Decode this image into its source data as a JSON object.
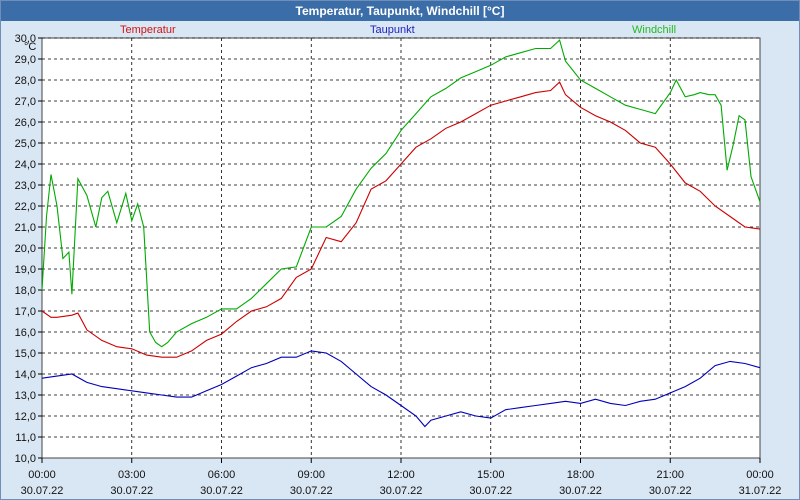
{
  "window": {
    "title": "Temperatur, Taupunkt, Windchill [°C]"
  },
  "chart_data": {
    "type": "line",
    "title": "Temperatur, Taupunkt, Windchill [°C]",
    "ylabel": "°C",
    "ylim": [
      10.0,
      30.0
    ],
    "ytick_step": 1,
    "ytick_labels": [
      "10,0",
      "11,0",
      "12,0",
      "13,0",
      "14,0",
      "15,0",
      "16,0",
      "17,0",
      "18,0",
      "19,0",
      "20,0",
      "21,0",
      "22,0",
      "23,0",
      "24,0",
      "25,0",
      "26,0",
      "27,0",
      "28,0",
      "29,0",
      "30,0"
    ],
    "xlim": [
      0,
      24
    ],
    "xticks": [
      {
        "time": "00:00",
        "date": "30.07.22"
      },
      {
        "time": "03:00",
        "date": "30.07.22"
      },
      {
        "time": "06:00",
        "date": "30.07.22"
      },
      {
        "time": "09:00",
        "date": "30.07.22"
      },
      {
        "time": "12:00",
        "date": "30.07.22"
      },
      {
        "time": "15:00",
        "date": "30.07.22"
      },
      {
        "time": "18:00",
        "date": "30.07.22"
      },
      {
        "time": "21:00",
        "date": "30.07.22"
      },
      {
        "time": "00:00",
        "date": "31.07.22"
      }
    ],
    "grid": true,
    "legend": "top",
    "series": [
      {
        "name": "Temperatur",
        "color": "#cc0000",
        "x": [
          0,
          0.3,
          0.5,
          1.0,
          1.2,
          1.5,
          2.0,
          2.5,
          3.0,
          3.5,
          4.0,
          4.5,
          5.0,
          5.5,
          6.0,
          6.5,
          7.0,
          7.5,
          8.0,
          8.5,
          9.0,
          9.5,
          10.0,
          10.5,
          11.0,
          11.5,
          12.0,
          12.5,
          13.0,
          13.5,
          14.0,
          14.5,
          15.0,
          15.5,
          16.0,
          16.5,
          17.0,
          17.3,
          17.5,
          18.0,
          18.5,
          19.0,
          19.5,
          20.0,
          20.5,
          21.0,
          21.5,
          22.0,
          22.5,
          23.0,
          23.5,
          24.0
        ],
        "y": [
          17.0,
          16.7,
          16.7,
          16.8,
          16.9,
          16.1,
          15.6,
          15.3,
          15.2,
          14.9,
          14.8,
          14.8,
          15.1,
          15.6,
          15.9,
          16.5,
          17.0,
          17.2,
          17.6,
          18.6,
          19.0,
          20.5,
          20.3,
          21.2,
          22.8,
          23.2,
          24.0,
          24.8,
          25.2,
          25.7,
          26.0,
          26.4,
          26.8,
          27.0,
          27.2,
          27.4,
          27.5,
          27.9,
          27.3,
          26.7,
          26.3,
          26.0,
          25.6,
          25.0,
          24.8,
          24.0,
          23.1,
          22.7,
          22.0,
          21.5,
          21.0,
          20.9
        ]
      },
      {
        "name": "Taupunkt",
        "color": "#0000bb",
        "x": [
          0,
          0.5,
          1.0,
          1.5,
          2.0,
          2.5,
          3.0,
          3.5,
          4.0,
          4.5,
          5.0,
          5.5,
          6.0,
          6.5,
          7.0,
          7.5,
          8.0,
          8.5,
          9.0,
          9.5,
          10.0,
          10.5,
          11.0,
          11.5,
          12.0,
          12.5,
          12.8,
          13.0,
          13.5,
          14.0,
          14.5,
          15.0,
          15.5,
          16.0,
          16.5,
          17.0,
          17.5,
          18.0,
          18.5,
          19.0,
          19.5,
          20.0,
          20.5,
          21.0,
          21.5,
          22.0,
          22.5,
          23.0,
          23.5,
          24.0
        ],
        "y": [
          13.8,
          13.9,
          14.0,
          13.6,
          13.4,
          13.3,
          13.2,
          13.1,
          13.0,
          12.9,
          12.9,
          13.2,
          13.5,
          13.9,
          14.3,
          14.5,
          14.8,
          14.8,
          15.1,
          15.0,
          14.6,
          14.0,
          13.4,
          13.0,
          12.5,
          12.0,
          11.5,
          11.8,
          12.0,
          12.2,
          12.0,
          11.9,
          12.3,
          12.4,
          12.5,
          12.6,
          12.7,
          12.6,
          12.8,
          12.6,
          12.5,
          12.7,
          12.8,
          13.1,
          13.4,
          13.8,
          14.4,
          14.6,
          14.5,
          14.3
        ]
      },
      {
        "name": "Windchill",
        "color": "#00aa00",
        "x": [
          0,
          0.15,
          0.3,
          0.5,
          0.7,
          0.9,
          1.0,
          1.2,
          1.5,
          1.8,
          2.0,
          2.2,
          2.5,
          2.8,
          3.0,
          3.2,
          3.4,
          3.6,
          3.8,
          4.0,
          4.2,
          4.5,
          5.0,
          5.5,
          6.0,
          6.5,
          7.0,
          7.5,
          8.0,
          8.5,
          9.0,
          9.5,
          10.0,
          10.5,
          11.0,
          11.5,
          12.0,
          12.5,
          13.0,
          13.5,
          14.0,
          14.5,
          15.0,
          15.5,
          16.0,
          16.5,
          17.0,
          17.3,
          17.5,
          18.0,
          18.5,
          19.0,
          19.5,
          20.0,
          20.5,
          21.0,
          21.2,
          21.5,
          21.8,
          22.0,
          22.3,
          22.5,
          22.7,
          22.9,
          23.1,
          23.3,
          23.5,
          23.7,
          24.0
        ],
        "y": [
          18.0,
          21.5,
          23.5,
          22.0,
          19.5,
          19.8,
          17.8,
          23.3,
          22.5,
          21.0,
          22.4,
          22.7,
          21.2,
          22.6,
          21.3,
          22.1,
          21.0,
          16.0,
          15.5,
          15.3,
          15.5,
          16.0,
          16.4,
          16.7,
          17.1,
          17.1,
          17.6,
          18.3,
          19.0,
          19.1,
          21.0,
          21.0,
          21.5,
          22.8,
          23.8,
          24.5,
          25.6,
          26.4,
          27.2,
          27.6,
          28.1,
          28.4,
          28.7,
          29.1,
          29.3,
          29.5,
          29.5,
          29.9,
          28.9,
          28.0,
          27.6,
          27.2,
          26.8,
          26.6,
          26.4,
          27.4,
          28.0,
          27.2,
          27.3,
          27.4,
          27.3,
          27.3,
          26.8,
          23.7,
          24.9,
          26.3,
          26.1,
          23.4,
          22.2
        ]
      }
    ]
  }
}
